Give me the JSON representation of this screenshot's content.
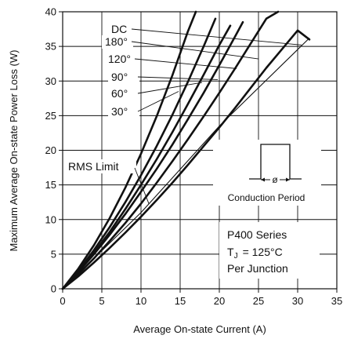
{
  "chart_data": {
    "type": "line",
    "title": "",
    "xlabel": "Average On-state Current (A)",
    "ylabel": "Maximum Average On-state Power Loss (W)",
    "xlim": [
      0,
      35
    ],
    "ylim": [
      0,
      40
    ],
    "xticks": [
      0,
      5,
      10,
      15,
      20,
      25,
      30,
      35
    ],
    "yticks": [
      0,
      5,
      10,
      15,
      20,
      25,
      30,
      35,
      40
    ],
    "grid": true,
    "series": [
      {
        "name": "DC",
        "x": [
          0,
          2,
          4,
          6,
          8,
          10,
          12,
          14,
          16,
          18,
          20,
          22,
          24,
          26,
          28,
          30,
          31.5
        ],
        "y": [
          0,
          1.8,
          3.8,
          5.9,
          8.1,
          10.4,
          12.8,
          15.3,
          17.9,
          20.6,
          23.3,
          26.1,
          29.0,
          31.9,
          34.6,
          37.3,
          36.0
        ]
      },
      {
        "name": "180°",
        "x": [
          0,
          2,
          4,
          6,
          8,
          10,
          12,
          14,
          16,
          18,
          20,
          22,
          24,
          26,
          27.5
        ],
        "y": [
          0,
          2.1,
          4.4,
          6.9,
          9.5,
          12.3,
          15.3,
          18.4,
          21.6,
          24.9,
          28.3,
          31.8,
          35.4,
          39.0,
          40
        ]
      },
      {
        "name": "120°",
        "x": [
          0,
          2,
          4,
          6,
          8,
          10,
          12,
          14,
          16,
          18,
          20,
          22,
          23
        ],
        "y": [
          0,
          2.4,
          5.0,
          7.8,
          10.8,
          14.0,
          17.3,
          20.8,
          24.5,
          28.3,
          32.3,
          36.4,
          38.5
        ]
      },
      {
        "name": "90°",
        "x": [
          0,
          2,
          4,
          6,
          8,
          10,
          12,
          14,
          16,
          18,
          20,
          21.4
        ],
        "y": [
          0,
          2.5,
          5.2,
          8.2,
          11.5,
          15.0,
          18.7,
          22.6,
          26.7,
          30.9,
          35.2,
          38.0
        ]
      },
      {
        "name": "60°",
        "x": [
          0,
          2,
          4,
          6,
          8,
          10,
          12,
          14,
          16,
          18,
          19.5
        ],
        "y": [
          0,
          2.6,
          5.6,
          8.9,
          12.5,
          16.4,
          20.6,
          25.1,
          29.9,
          35.0,
          39.0
        ]
      },
      {
        "name": "30°",
        "x": [
          0,
          2,
          4,
          6,
          8,
          10,
          12,
          14,
          16,
          17
        ],
        "y": [
          0,
          2.9,
          6.3,
          10.2,
          14.6,
          19.5,
          24.9,
          30.8,
          37.2,
          40
        ]
      }
    ],
    "rms_limit": {
      "name": "RMS Limit",
      "x": [
        0,
        10,
        20,
        31.5
      ],
      "y": [
        0,
        11,
        23.5,
        36.2
      ]
    },
    "annotations": {
      "conduction": "Conduction  Period",
      "phi": "ø",
      "series_name": "P400  Series",
      "tj_prefix": "T",
      "tj_sub": "J",
      "tj_value": "=  125°C",
      "per_junction": "Per  Junction"
    }
  }
}
